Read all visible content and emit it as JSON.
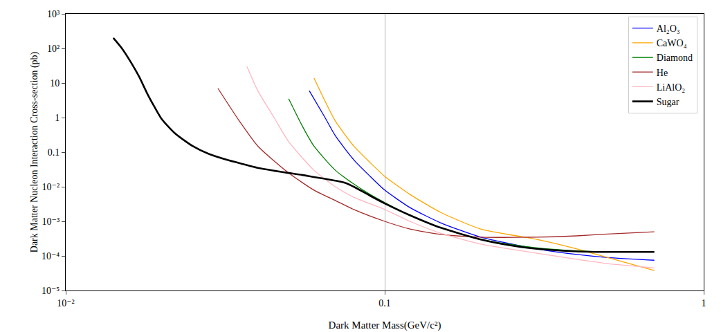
{
  "chart_data": {
    "type": "line",
    "x_label": "Dark Matter Mass(GeV/c²)",
    "y_label": "Dark Matter Nucleon Interaction Cross-section (pb)",
    "log": true,
    "grid": "x",
    "legend": "upper right",
    "xlim": [
      0.01,
      1
    ],
    "ylim": [
      1e-05,
      1000
    ],
    "xticks": [
      {
        "value": 0.01,
        "label": "10⁻²"
      },
      0.1,
      1
    ],
    "yticks": [
      {
        "value": 1e-05,
        "label": "10⁻⁵"
      },
      {
        "value": 0.0001,
        "label": "10⁻⁴"
      },
      {
        "value": 0.001,
        "label": "10⁻³"
      },
      {
        "value": 0.01,
        "label": "10⁻²"
      },
      0.1,
      1,
      10,
      {
        "value": 100,
        "label": "10²"
      },
      {
        "value": 1000,
        "label": "10³"
      }
    ],
    "series": [
      {
        "name": "Al₂O₃",
        "color": "#0000ff",
        "x": [
          0.058,
          0.065,
          0.07,
          0.08,
          0.09,
          0.1,
          0.12,
          0.15,
          0.2,
          0.3,
          0.4,
          0.5,
          0.7
        ],
        "values": [
          6,
          1,
          0.3,
          0.06,
          0.02,
          0.008,
          0.0025,
          0.0009,
          0.00035,
          0.00016,
          0.00011,
          9e-05,
          7.5e-05
        ]
      },
      {
        "name": "CaWO₄",
        "color": "#ffa500",
        "x": [
          0.06,
          0.065,
          0.07,
          0.08,
          0.09,
          0.1,
          0.12,
          0.15,
          0.2,
          0.3,
          0.4,
          0.5,
          0.7
        ],
        "values": [
          14,
          3,
          0.8,
          0.15,
          0.05,
          0.02,
          0.006,
          0.0018,
          0.0006,
          0.0003,
          0.00016,
          9e-05,
          3.8e-05
        ]
      },
      {
        "name": "Diamond",
        "color": "#008000",
        "x": [
          0.05,
          0.055,
          0.06,
          0.07,
          0.08,
          0.09,
          0.1,
          0.12,
          0.15,
          0.2,
          0.3,
          0.4,
          0.5,
          0.7
        ],
        "values": [
          3.5,
          0.6,
          0.15,
          0.03,
          0.012,
          0.006,
          0.0035,
          0.0015,
          0.00065,
          0.0003,
          0.00017,
          0.00014,
          0.00013,
          0.00013
        ]
      },
      {
        "name": "He",
        "color": "#a52a2a",
        "x": [
          0.03,
          0.035,
          0.04,
          0.05,
          0.06,
          0.07,
          0.08,
          0.1,
          0.12,
          0.15,
          0.2,
          0.3,
          0.4,
          0.5,
          0.7
        ],
        "values": [
          7,
          0.8,
          0.15,
          0.025,
          0.008,
          0.004,
          0.0022,
          0.001,
          0.0006,
          0.00042,
          0.00035,
          0.00035,
          0.00038,
          0.00043,
          0.0005
        ]
      },
      {
        "name": "LiAlO₂",
        "color": "#ffb6c1",
        "x": [
          0.037,
          0.04,
          0.045,
          0.05,
          0.06,
          0.07,
          0.08,
          0.1,
          0.12,
          0.15,
          0.2,
          0.3,
          0.4,
          0.5,
          0.7
        ],
        "values": [
          30,
          6,
          1,
          0.2,
          0.03,
          0.01,
          0.005,
          0.0022,
          0.001,
          0.00045,
          0.00022,
          0.00012,
          8e-05,
          6e-05,
          4.5e-05
        ]
      },
      {
        "name": "Sugar",
        "color": "#000000",
        "line_style": "thick",
        "x": [
          0.0141,
          0.015,
          0.016,
          0.017,
          0.018,
          0.019,
          0.02,
          0.022,
          0.025,
          0.028,
          0.032,
          0.036,
          0.04,
          0.045,
          0.05,
          0.055,
          0.06,
          0.065,
          0.07,
          0.075,
          0.08,
          0.09,
          0.1,
          0.12,
          0.15,
          0.2,
          0.25,
          0.3,
          0.4,
          0.5,
          0.7
        ],
        "values": [
          200,
          100,
          40,
          15,
          5,
          2,
          0.9,
          0.35,
          0.15,
          0.09,
          0.06,
          0.045,
          0.035,
          0.029,
          0.025,
          0.022,
          0.019,
          0.017,
          0.015,
          0.013,
          0.01,
          0.0055,
          0.0033,
          0.0015,
          0.00065,
          0.0003,
          0.0002,
          0.00016,
          0.000135,
          0.00013,
          0.00013
        ]
      }
    ]
  }
}
